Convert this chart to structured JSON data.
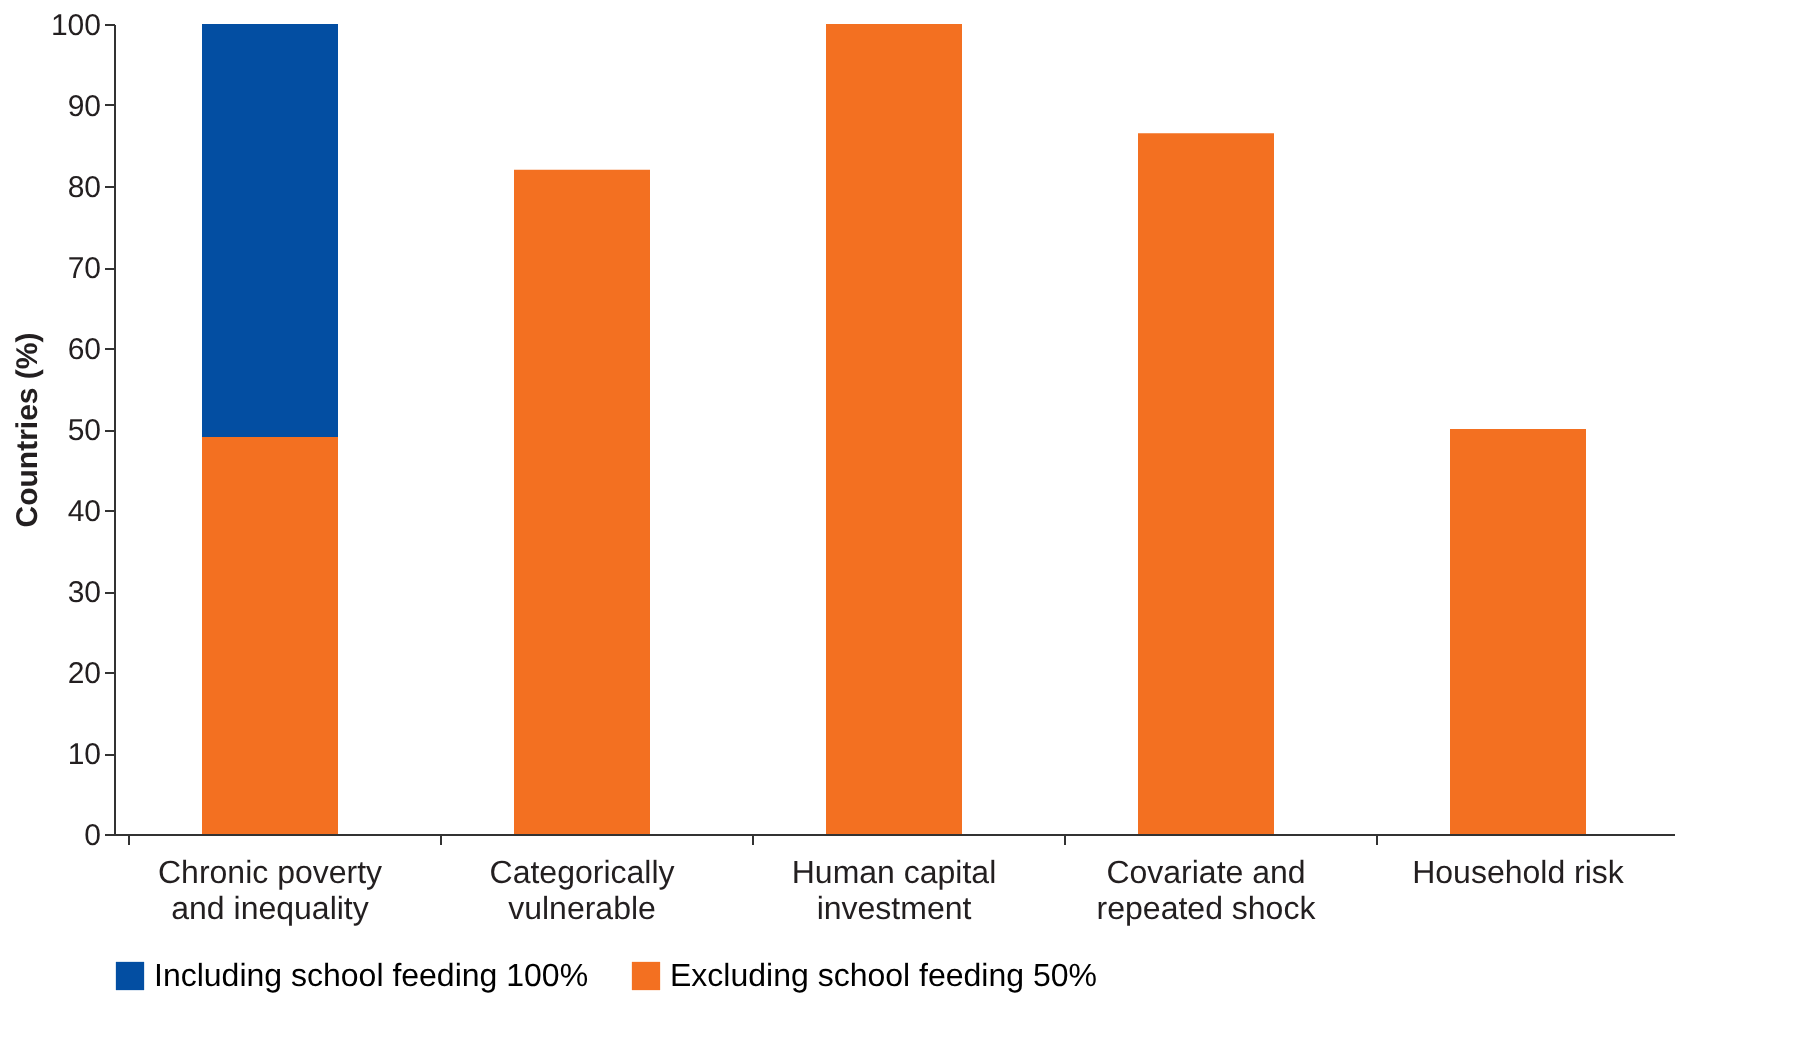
{
  "chart_data": {
    "type": "bar",
    "ylabel": "Countries (%)",
    "categories": [
      "Chronic poverty and inequality",
      "Categorically vulnerable",
      "Human capital investment",
      "Covariate and repeated shock",
      "Household risk"
    ],
    "series": [
      {
        "name": "Excluding school feeding 50%",
        "color": "#f37021",
        "values": [
          49,
          82,
          100,
          86.5,
          50
        ]
      },
      {
        "name": "Including school feeding 100%",
        "color": "#034ea2",
        "values": [
          51,
          null,
          null,
          null,
          null
        ]
      }
    ],
    "stacked": true,
    "ylim": [
      0,
      100
    ],
    "yticks": [
      0,
      10,
      20,
      30,
      40,
      50,
      60,
      70,
      80,
      90,
      100
    ],
    "grid": false,
    "legend": "bottom"
  }
}
